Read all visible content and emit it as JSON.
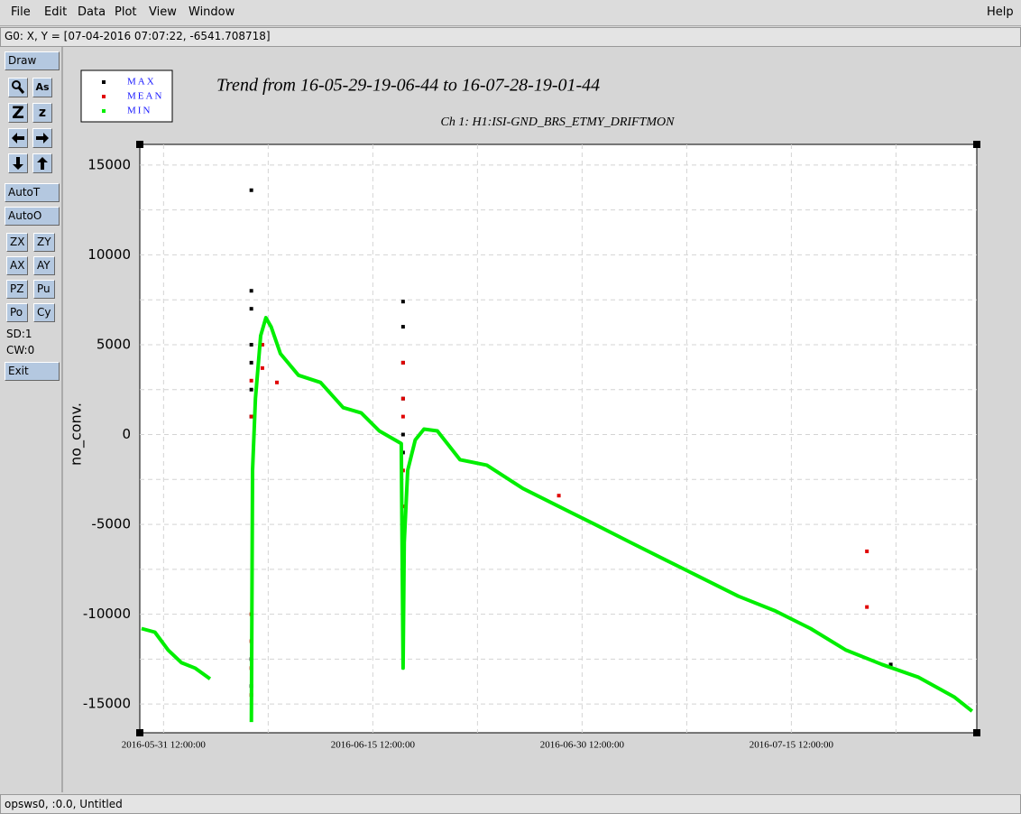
{
  "menu": {
    "items": [
      "File",
      "Edit",
      "Data",
      "Plot",
      "View",
      "Window"
    ],
    "help": "Help"
  },
  "status_line": "G0: X, Y = [07-04-2016 07:07:22, -6541.708718]",
  "toolbar": {
    "draw": "Draw",
    "icon_labels": [
      "As",
      "Z",
      "z"
    ],
    "auto": [
      "AutoT",
      "AutoO"
    ],
    "pairs": [
      [
        "ZX",
        "ZY"
      ],
      [
        "AX",
        "AY"
      ],
      [
        "PZ",
        "Pu"
      ],
      [
        "Po",
        "Cy"
      ]
    ],
    "info": [
      "SD:1",
      "CW:0"
    ],
    "exit": "Exit"
  },
  "footer": "opsws0, :0.0, Untitled",
  "chart_data": {
    "type": "line",
    "title": "Trend from 16-05-29-19-06-44 to 16-07-28-19-01-44",
    "subtitle": "Ch 1: H1:ISI-GND_BRS_ETMY_DRIFTMON",
    "y_label": "no_conv.",
    "xlim": [
      "2016-05-29 19:06:44",
      "2016-07-28 19:01:44"
    ],
    "xticks": [
      "2016-05-31 12:00:00",
      "2016-06-15 12:00:00",
      "2016-06-30 12:00:00",
      "2016-07-15 12:00:00"
    ],
    "minor_xticks": [
      "2016-06-08 00:00:00",
      "2016-06-23 00:00:00",
      "2016-07-08 00:00:00",
      "2016-07-23 00:00:00"
    ],
    "ylim": [
      -16600,
      16150
    ],
    "yticks": [
      -15000,
      -10000,
      -5000,
      0,
      5000,
      10000,
      15000
    ],
    "minor_yticks": [
      -12500,
      -7500,
      -2500,
      2500,
      7500,
      12500
    ],
    "grid": true,
    "legend_position": "top-left",
    "series": [
      {
        "name": "MAX",
        "color": "#000000",
        "mode": "markers",
        "x": [
          "2016-06-06 19:00:00",
          "2016-06-06 19:00:00",
          "2016-06-06 19:00:00",
          "2016-06-06 19:00:00",
          "2016-06-06 19:00:00",
          "2016-06-06 19:00:00",
          "2016-06-06 19:00:00",
          "2016-06-06 19:00:00",
          "2016-06-06 19:00:00",
          "2016-06-17 16:00:00",
          "2016-06-17 16:00:00",
          "2016-06-17 16:00:00",
          "2016-06-17 16:00:00",
          "2016-06-17 16:00:00",
          "2016-06-17 16:00:00",
          "2016-07-22 15:00:00"
        ],
        "values": [
          13600,
          8000,
          7000,
          5000,
          4000,
          2500,
          1000,
          -12500,
          -14000,
          7400,
          6000,
          4000,
          2000,
          0,
          -1000,
          -12800
        ]
      },
      {
        "name": "MEAN",
        "color": "#e00000",
        "mode": "markers",
        "x": [
          "2016-06-06 19:00:00",
          "2016-06-06 19:00:00",
          "2016-06-06 19:00:00",
          "2016-06-06 19:00:00",
          "2016-06-06 19:00:00",
          "2016-06-06 19:00:00",
          "2016-06-07 14:00:00",
          "2016-06-07 14:00:00",
          "2016-06-08 15:00:00",
          "2016-06-17 16:00:00",
          "2016-06-17 16:00:00",
          "2016-06-17 16:00:00",
          "2016-06-17 16:00:00",
          "2016-06-17 16:00:00",
          "2016-06-17 16:00:00",
          "2016-06-28 20:00:00",
          "2016-07-20 22:00:00",
          "2016-07-20 22:00:00"
        ],
        "values": [
          3000,
          1000,
          -10000,
          -11500,
          -13000,
          -14500,
          5000,
          3700,
          2900,
          4000,
          2000,
          1000,
          -2000,
          -4000,
          -8000,
          -3400,
          -6500,
          -9600
        ]
      },
      {
        "name": "MIN",
        "color": "#00ee00",
        "mode": "lines",
        "x": [
          "2016-05-29 22:00:00",
          "2016-05-30 21:00:00",
          "2016-05-31 20:00:00",
          "2016-06-01 19:00:00",
          "2016-06-02 18:00:00",
          "2016-06-03 20:00:00",
          "2016-06-05 00:00:00",
          "2016-06-06 19:00:00",
          "2016-06-06 21:00:00",
          "2016-06-07 02:00:00",
          "2016-06-07 11:00:00",
          "2016-06-07 20:00:00",
          "2016-06-08 05:00:00",
          "2016-06-08 21:00:00",
          "2016-06-10 04:00:00",
          "2016-06-11 18:00:00",
          "2016-06-13 09:00:00",
          "2016-06-14 16:00:00",
          "2016-06-15 23:00:00",
          "2016-06-17 13:00:00",
          "2016-06-17 16:00:00",
          "2016-06-17 18:00:00",
          "2016-06-18 00:00:00",
          "2016-06-18 13:00:00",
          "2016-06-19 04:00:00",
          "2016-06-20 03:00:00",
          "2016-06-21 18:00:00",
          "2016-06-23 16:00:00",
          "2016-06-26 06:00:00",
          "2016-06-28 20:00:00",
          "2016-07-01 10:00:00",
          "2016-07-03 23:00:00",
          "2016-07-06 13:00:00",
          "2016-07-09 03:00:00",
          "2016-07-11 17:00:00",
          "2016-07-14 07:00:00",
          "2016-07-16 21:00:00",
          "2016-07-19 10:00:00",
          "2016-07-22 00:00:00",
          "2016-07-24 14:00:00",
          "2016-07-27 04:00:00",
          "2016-07-28 11:00:00"
        ],
        "values": [
          -10800,
          -11000,
          -12000,
          -12700,
          -13000,
          -13600,
          null,
          -16000,
          -2000,
          2000,
          5500,
          6500,
          6000,
          4500,
          3300,
          2900,
          1500,
          1200,
          200,
          -500,
          -13000,
          -6000,
          -2000,
          -300,
          300,
          200,
          -1400,
          -1700,
          -3000,
          -4000,
          -5000,
          -6000,
          -7000,
          -8000,
          -9000,
          -9800,
          -10800,
          -12000,
          -12800,
          -13500,
          -14600,
          -15400
        ]
      }
    ]
  }
}
